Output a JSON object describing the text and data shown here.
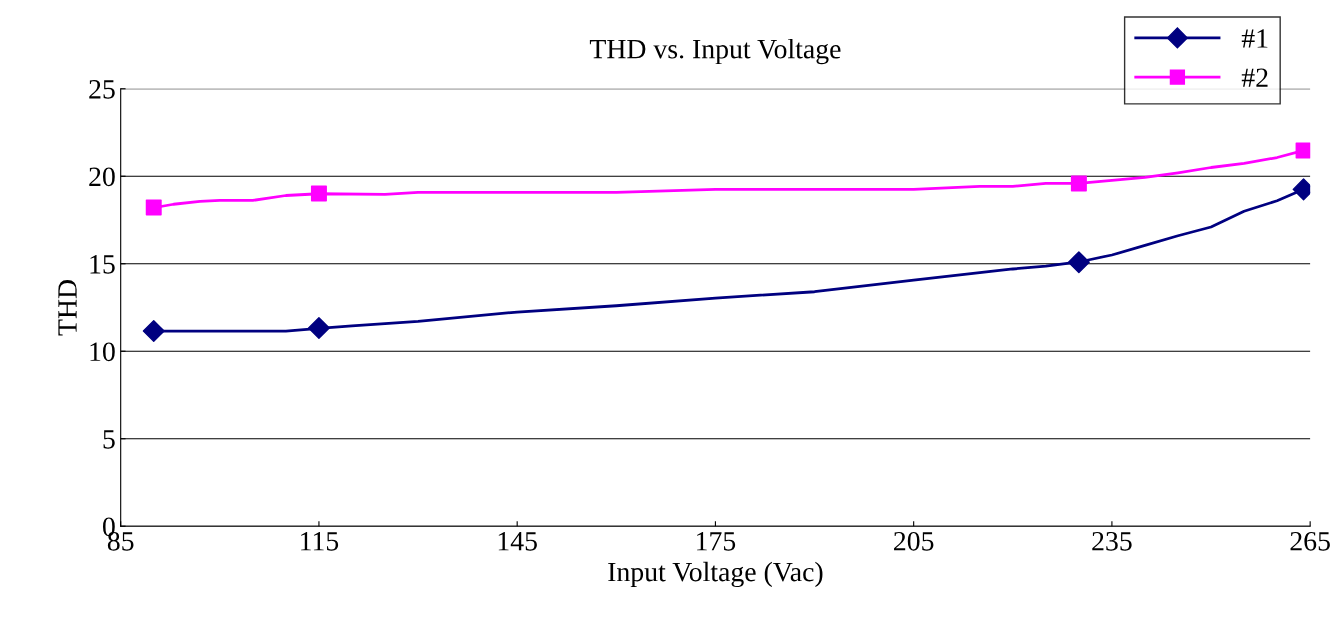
{
  "chart_data": {
    "type": "line",
    "title": "THD vs. Input Voltage",
    "xlabel": "Input Voltage (Vac)",
    "ylabel": "THD",
    "xlim": [
      85,
      265
    ],
    "xticks": [
      85,
      115,
      145,
      175,
      205,
      235,
      265
    ],
    "ylim": [
      0,
      25
    ],
    "yticks": [
      0,
      5,
      10,
      15,
      20,
      25
    ],
    "grid": "y",
    "legend": "top right",
    "marker": "none",
    "line_style": "solid",
    "series": [
      {
        "name": "#1",
        "color": "#000080",
        "x": [
          90,
          110,
          115,
          120,
          130,
          145,
          160,
          175,
          190,
          205,
          220,
          225,
          230,
          235,
          240,
          245,
          250,
          255,
          260,
          264
        ],
        "values": [
          11.15,
          11.15,
          11.3,
          11.45,
          11.7,
          12.24,
          12.6,
          13.04,
          13.4,
          14.07,
          14.7,
          14.86,
          15.1,
          15.5,
          16.05,
          16.6,
          17.1,
          18.0,
          18.6,
          19.25
        ]
      },
      {
        "type": "scatter",
        "marker": "diamond",
        "color": "#000080",
        "x": [
          90,
          115,
          230,
          264
        ],
        "values": [
          11.16,
          11.33,
          15.09,
          19.25
        ]
      },
      {
        "name": "#2",
        "color": "#ff00ff",
        "x": [
          90,
          93,
          97,
          100,
          105,
          110,
          115,
          125,
          130,
          145,
          160,
          175,
          205,
          215,
          220,
          225,
          230,
          235,
          240,
          245,
          250,
          255,
          260,
          264
        ],
        "values": [
          18.2,
          18.4,
          18.56,
          18.62,
          18.62,
          18.9,
          19.0,
          18.96,
          19.08,
          19.08,
          19.08,
          19.25,
          19.25,
          19.42,
          19.42,
          19.59,
          19.59,
          19.76,
          19.93,
          20.2,
          20.5,
          20.73,
          21.07,
          21.47
        ]
      },
      {
        "type": "scatter",
        "marker": "square",
        "color": "#ff00ff",
        "x": [
          90,
          115,
          230,
          264
        ],
        "values": [
          18.22,
          19.02,
          19.59,
          21.47
        ]
      }
    ]
  }
}
